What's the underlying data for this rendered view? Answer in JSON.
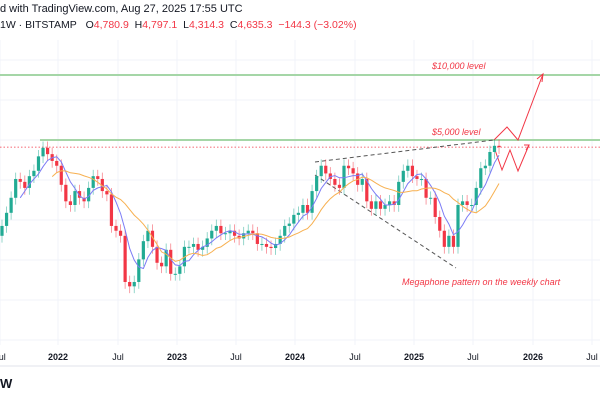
{
  "header": {
    "published": "d with TradingView.com, Aug 27, 2025 17:55 UTC",
    "symbol": "1W · BITSTAMP",
    "o_label": "O",
    "o_value": "4,780.9",
    "h_label": "H",
    "h_value": "4,797.1",
    "l_label": "L",
    "l_value": "4,314.3",
    "c_label": "C",
    "c_value": "4,635.3",
    "change": "−144.3 (−3.02%)"
  },
  "logo_text": "W",
  "colors": {
    "up": "#22ab94",
    "down": "#f23645",
    "ma_fast": "#7b7bf5",
    "ma_slow": "#f7b050",
    "level": "#a5d6a7",
    "annotation": "#f23645"
  },
  "chart_data": {
    "type": "candlestick",
    "interval": "biweekly approximation of weekly candles",
    "start": "2021-07",
    "closes": [
      2000,
      2300,
      2700,
      3300,
      3200,
      3000,
      3400,
      3600,
      4200,
      4600,
      4300,
      4000,
      3800,
      3100,
      2600,
      2500,
      2900,
      2700,
      2600,
      3000,
      3400,
      3300,
      2900,
      2800,
      2000,
      1900,
      1800,
      1100,
      1050,
      1100,
      1400,
      1700,
      1900,
      1600,
      1350,
      1300,
      1550,
      1200,
      1200,
      1300,
      1600,
      1600,
      1650,
      1550,
      1600,
      1750,
      1900,
      2000,
      1850,
      1850,
      1900,
      1800,
      1750,
      1850,
      1900,
      1850,
      1650,
      1650,
      1600,
      1580,
      1650,
      1800,
      2000,
      2050,
      2250,
      2300,
      2500,
      2300,
      2900,
      3400,
      3800,
      3500,
      3300,
      3100,
      3000,
      3800,
      3700,
      3500,
      3100,
      3300,
      2600,
      2400,
      2600,
      2400,
      2500,
      2600,
      2500,
      3200,
      3600,
      3800,
      3400,
      3300,
      3300,
      2700,
      2700,
      2200,
      1900,
      1600,
      1800,
      1600,
      2500,
      2600,
      2500,
      2500,
      3000,
      3700,
      3800,
      4400,
      4700,
      4635.3
    ],
    "moving_averages": [
      {
        "name": "fast MA",
        "window": 5
      },
      {
        "name": "slow MA",
        "window": 12
      }
    ],
    "x_ticks": [
      "Jul",
      "2022",
      "Jul",
      "2023",
      "Jul",
      "2024",
      "Jul",
      "2025",
      "Jul",
      "2026",
      "Jul"
    ],
    "levels": [
      {
        "label": "$10,000 level",
        "price": 10000
      },
      {
        "label": "$5,000 level",
        "price": 5000
      }
    ],
    "current_price": 4635.3,
    "annotations": [
      "Megaphone pattern on the weekly chart"
    ],
    "y_scale": "log"
  }
}
